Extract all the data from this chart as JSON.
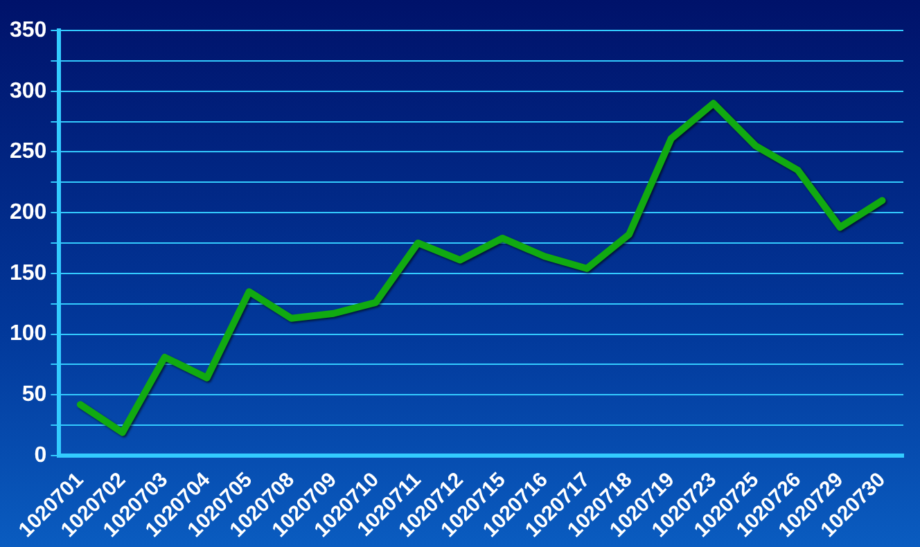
{
  "chart_data": {
    "type": "line",
    "categories": [
      "1020701",
      "1020702",
      "1020703",
      "1020704",
      "1020705",
      "1020708",
      "1020709",
      "1020710",
      "1020711",
      "1020712",
      "1020715",
      "1020716",
      "1020717",
      "1020718",
      "1020719",
      "1020723",
      "1020725",
      "1020726",
      "1020729",
      "1020730"
    ],
    "series": [
      {
        "color": "#11aa11",
        "values": [
          42,
          19,
          81,
          64,
          135,
          113,
          117,
          126,
          175,
          161,
          179,
          164,
          154,
          182,
          261,
          290,
          255,
          235,
          188,
          210
        ]
      }
    ],
    "ylim": [
      0,
      350
    ],
    "yticks": [
      0,
      {
        "value": 25,
        "label": null
      },
      50,
      {
        "value": 75,
        "label": null
      },
      100,
      {
        "value": 125,
        "label": null
      },
      150,
      {
        "value": 175,
        "label": null
      },
      200,
      {
        "value": 225,
        "label": null
      },
      250,
      {
        "value": 275,
        "label": null
      },
      300,
      {
        "value": 325,
        "label": null
      },
      350
    ],
    "grid": "y",
    "legend": false,
    "marker": "none",
    "line_style": "solid"
  }
}
